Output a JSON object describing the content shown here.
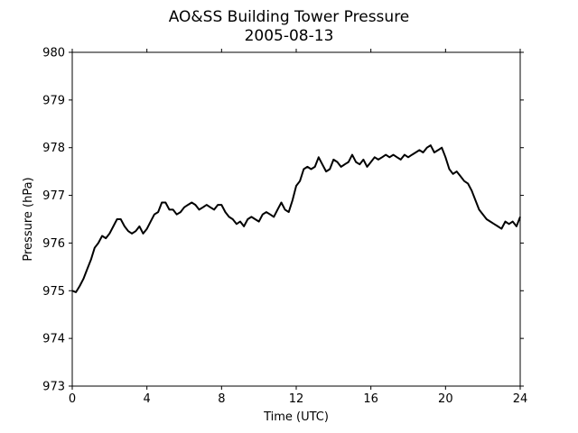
{
  "chart_data": {
    "type": "line",
    "title": "AO&SS Building Tower Pressure",
    "subtitle": "2005-08-13",
    "xlabel": "Time (UTC)",
    "ylabel": "Pressure (hPa)",
    "xlim": [
      0,
      24
    ],
    "ylim": [
      973,
      980
    ],
    "xticks": [
      0,
      4,
      8,
      12,
      16,
      20,
      24
    ],
    "yticks": [
      973,
      974,
      975,
      976,
      977,
      978,
      979,
      980
    ],
    "grid": false,
    "line_color": "#000000",
    "series": [
      {
        "points": [
          [
            0.0,
            975.0
          ],
          [
            0.2,
            974.97
          ],
          [
            0.4,
            975.1
          ],
          [
            0.6,
            975.25
          ],
          [
            0.8,
            975.45
          ],
          [
            1.0,
            975.65
          ],
          [
            1.2,
            975.9
          ],
          [
            1.4,
            976.0
          ],
          [
            1.6,
            976.15
          ],
          [
            1.8,
            976.1
          ],
          [
            2.0,
            976.2
          ],
          [
            2.2,
            976.35
          ],
          [
            2.4,
            976.5
          ],
          [
            2.6,
            976.5
          ],
          [
            2.8,
            976.35
          ],
          [
            3.0,
            976.25
          ],
          [
            3.2,
            976.2
          ],
          [
            3.4,
            976.25
          ],
          [
            3.6,
            976.35
          ],
          [
            3.8,
            976.2
          ],
          [
            4.0,
            976.3
          ],
          [
            4.2,
            976.45
          ],
          [
            4.4,
            976.6
          ],
          [
            4.6,
            976.65
          ],
          [
            4.8,
            976.85
          ],
          [
            5.0,
            976.85
          ],
          [
            5.2,
            976.7
          ],
          [
            5.4,
            976.7
          ],
          [
            5.6,
            976.6
          ],
          [
            5.8,
            976.65
          ],
          [
            6.0,
            976.75
          ],
          [
            6.2,
            976.8
          ],
          [
            6.4,
            976.85
          ],
          [
            6.6,
            976.8
          ],
          [
            6.8,
            976.7
          ],
          [
            7.0,
            976.75
          ],
          [
            7.2,
            976.8
          ],
          [
            7.4,
            976.75
          ],
          [
            7.6,
            976.7
          ],
          [
            7.8,
            976.8
          ],
          [
            8.0,
            976.8
          ],
          [
            8.2,
            976.65
          ],
          [
            8.4,
            976.55
          ],
          [
            8.6,
            976.5
          ],
          [
            8.8,
            976.4
          ],
          [
            9.0,
            976.45
          ],
          [
            9.2,
            976.35
          ],
          [
            9.4,
            976.5
          ],
          [
            9.6,
            976.55
          ],
          [
            9.8,
            976.5
          ],
          [
            10.0,
            976.45
          ],
          [
            10.2,
            976.6
          ],
          [
            10.4,
            976.65
          ],
          [
            10.6,
            976.6
          ],
          [
            10.8,
            976.55
          ],
          [
            11.0,
            976.7
          ],
          [
            11.2,
            976.85
          ],
          [
            11.4,
            976.7
          ],
          [
            11.6,
            976.65
          ],
          [
            11.8,
            976.9
          ],
          [
            12.0,
            977.2
          ],
          [
            12.2,
            977.3
          ],
          [
            12.4,
            977.55
          ],
          [
            12.6,
            977.6
          ],
          [
            12.8,
            977.55
          ],
          [
            13.0,
            977.6
          ],
          [
            13.2,
            977.8
          ],
          [
            13.4,
            977.65
          ],
          [
            13.6,
            977.5
          ],
          [
            13.8,
            977.55
          ],
          [
            14.0,
            977.75
          ],
          [
            14.2,
            977.7
          ],
          [
            14.4,
            977.6
          ],
          [
            14.6,
            977.65
          ],
          [
            14.8,
            977.7
          ],
          [
            15.0,
            977.85
          ],
          [
            15.2,
            977.7
          ],
          [
            15.4,
            977.65
          ],
          [
            15.6,
            977.75
          ],
          [
            15.8,
            977.6
          ],
          [
            16.0,
            977.7
          ],
          [
            16.2,
            977.8
          ],
          [
            16.4,
            977.75
          ],
          [
            16.6,
            977.8
          ],
          [
            16.8,
            977.85
          ],
          [
            17.0,
            977.8
          ],
          [
            17.2,
            977.85
          ],
          [
            17.4,
            977.8
          ],
          [
            17.6,
            977.75
          ],
          [
            17.8,
            977.85
          ],
          [
            18.0,
            977.8
          ],
          [
            18.2,
            977.85
          ],
          [
            18.4,
            977.9
          ],
          [
            18.6,
            977.95
          ],
          [
            18.8,
            977.9
          ],
          [
            19.0,
            978.0
          ],
          [
            19.2,
            978.05
          ],
          [
            19.4,
            977.9
          ],
          [
            19.6,
            977.95
          ],
          [
            19.8,
            978.0
          ],
          [
            20.0,
            977.8
          ],
          [
            20.2,
            977.55
          ],
          [
            20.4,
            977.45
          ],
          [
            20.6,
            977.5
          ],
          [
            20.8,
            977.4
          ],
          [
            21.0,
            977.3
          ],
          [
            21.2,
            977.25
          ],
          [
            21.4,
            977.1
          ],
          [
            21.6,
            976.9
          ],
          [
            21.8,
            976.7
          ],
          [
            22.0,
            976.6
          ],
          [
            22.2,
            976.5
          ],
          [
            22.4,
            976.45
          ],
          [
            22.6,
            976.4
          ],
          [
            22.8,
            976.35
          ],
          [
            23.0,
            976.3
          ],
          [
            23.2,
            976.45
          ],
          [
            23.4,
            976.4
          ],
          [
            23.6,
            976.45
          ],
          [
            23.8,
            976.35
          ],
          [
            24.0,
            976.55
          ]
        ]
      }
    ]
  }
}
